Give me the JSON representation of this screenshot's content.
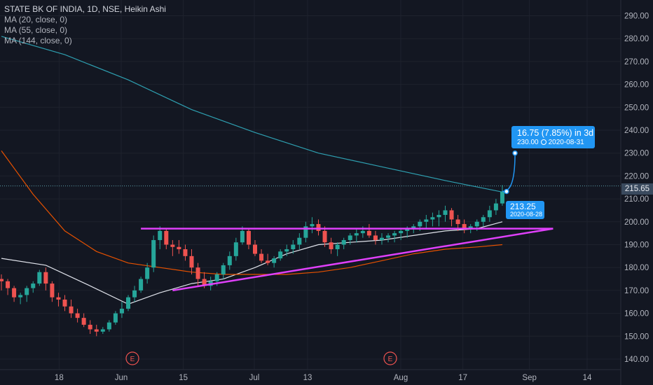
{
  "legend": {
    "title": "STATE BK OF INDIA, 1D, NSE, Heikin Ashi",
    "ma20": "MA (20, close, 0)",
    "ma55": "MA (55, close, 0)",
    "ma144": "MA (144, close, 0)"
  },
  "last_price": "215.65",
  "prediction": {
    "change": "16.75 (7.85%) in 3d",
    "target_price": "230.00",
    "target_date": "2020-08-31",
    "start_price": "213.25",
    "start_date": "2020-08-28"
  },
  "event_markers": [
    "E",
    "E"
  ],
  "colors": {
    "background": "#131722",
    "up": "#26a69a",
    "down": "#ef5350",
    "ma20": "#e0e3eb",
    "ma55": "#e65100",
    "ma144": "#2e9fb0",
    "trendlines": "#e040fb",
    "callout": "#2196f3"
  },
  "chart_data": {
    "type": "candlestick",
    "title": "STATE BK OF INDIA, 1D, NSE, Heikin Ashi",
    "ylim": [
      136,
      297
    ],
    "y_ticks": [
      "140.00",
      "150.00",
      "160.00",
      "170.00",
      "180.00",
      "190.00",
      "200.00",
      "210.00",
      "220.00",
      "230.00",
      "240.00",
      "250.00",
      "260.00",
      "270.00",
      "280.00",
      "290.00"
    ],
    "x_ticks": [
      {
        "label": "18",
        "date": "2020-05-18"
      },
      {
        "label": "Jun",
        "date": "2020-06-01"
      },
      {
        "label": "15",
        "date": "2020-06-15"
      },
      {
        "label": "Jul",
        "date": "2020-07-01"
      },
      {
        "label": "13",
        "date": "2020-07-13"
      },
      {
        "label": "Aug",
        "date": "2020-08-03"
      },
      {
        "label": "17",
        "date": "2020-08-17"
      },
      {
        "label": "Sep",
        "date": "2020-09-01"
      },
      {
        "label": "14",
        "date": "2020-09-14"
      }
    ],
    "x_range": [
      "2020-05-05",
      "2020-09-24"
    ],
    "candles": [
      [
        175,
        177,
        170,
        174
      ],
      [
        174,
        175,
        168,
        171
      ],
      [
        171,
        172,
        165,
        167
      ],
      [
        167,
        169,
        164,
        168
      ],
      [
        168,
        172,
        165,
        171
      ],
      [
        171,
        174,
        169,
        173
      ],
      [
        173,
        179,
        172,
        178
      ],
      [
        178,
        180,
        170,
        173
      ],
      [
        173,
        174,
        165,
        167
      ],
      [
        167,
        169,
        163,
        166
      ],
      [
        166,
        168,
        161,
        163
      ],
      [
        163,
        166,
        158,
        160
      ],
      [
        160,
        162,
        156,
        158
      ],
      [
        158,
        160,
        154,
        155
      ],
      [
        155,
        157,
        151,
        153
      ],
      [
        153,
        155,
        150,
        152
      ],
      [
        152,
        154,
        151,
        153
      ],
      [
        153,
        157,
        152,
        156
      ],
      [
        156,
        161,
        155,
        160
      ],
      [
        160,
        165,
        158,
        162
      ],
      [
        162,
        168,
        161,
        167
      ],
      [
        167,
        172,
        165,
        170
      ],
      [
        170,
        176,
        169,
        175
      ],
      [
        175,
        182,
        173,
        180
      ],
      [
        180,
        194,
        178,
        192
      ],
      [
        192,
        198,
        188,
        196
      ],
      [
        196,
        197,
        188,
        190
      ],
      [
        190,
        192,
        185,
        189
      ],
      [
        189,
        192,
        186,
        188
      ],
      [
        188,
        190,
        183,
        185
      ],
      [
        185,
        188,
        177,
        180
      ],
      [
        180,
        182,
        172,
        175
      ],
      [
        175,
        178,
        171,
        172
      ],
      [
        172,
        176,
        170,
        174
      ],
      [
        174,
        178,
        172,
        177
      ],
      [
        177,
        182,
        175,
        181
      ],
      [
        181,
        187,
        179,
        185
      ],
      [
        185,
        193,
        183,
        191
      ],
      [
        191,
        198,
        190,
        196
      ],
      [
        196,
        197,
        188,
        190
      ],
      [
        190,
        192,
        185,
        186
      ],
      [
        186,
        188,
        182,
        183
      ],
      [
        183,
        186,
        181,
        182
      ],
      [
        182,
        185,
        180,
        184
      ],
      [
        184,
        188,
        183,
        187
      ],
      [
        187,
        190,
        185,
        188
      ],
      [
        188,
        192,
        186,
        190
      ],
      [
        190,
        195,
        188,
        193
      ],
      [
        193,
        200,
        191,
        198
      ],
      [
        198,
        202,
        195,
        199
      ],
      [
        199,
        201,
        194,
        196
      ],
      [
        196,
        198,
        189,
        191
      ],
      [
        191,
        193,
        186,
        188
      ],
      [
        188,
        191,
        185,
        190
      ],
      [
        190,
        193,
        188,
        192
      ],
      [
        192,
        195,
        190,
        194
      ],
      [
        194,
        197,
        191,
        195
      ],
      [
        195,
        198,
        193,
        196
      ],
      [
        196,
        199,
        193,
        194
      ],
      [
        194,
        196,
        190,
        192
      ],
      [
        192,
        195,
        190,
        193
      ],
      [
        193,
        195,
        191,
        194
      ],
      [
        194,
        196,
        191,
        195
      ],
      [
        195,
        197,
        192,
        196
      ],
      [
        196,
        198,
        193,
        197
      ],
      [
        197,
        199,
        195,
        198
      ],
      [
        198,
        201,
        196,
        200
      ],
      [
        200,
        203,
        197,
        201
      ],
      [
        201,
        204,
        198,
        202
      ],
      [
        202,
        205,
        198,
        203
      ],
      [
        203,
        207,
        200,
        205
      ],
      [
        205,
        206,
        198,
        201
      ],
      [
        201,
        203,
        196,
        199
      ],
      [
        199,
        201,
        195,
        197
      ],
      [
        197,
        199,
        195,
        198
      ],
      [
        198,
        201,
        196,
        200
      ],
      [
        200,
        203,
        198,
        202
      ],
      [
        202,
        207,
        200,
        205
      ],
      [
        205,
        210,
        203,
        208
      ],
      [
        208,
        216,
        207,
        213.25
      ]
    ],
    "series": [
      {
        "name": "MA (20, close, 0)",
        "points": [
          [
            0,
            184
          ],
          [
            7,
            181
          ],
          [
            14,
            172
          ],
          [
            20,
            164
          ],
          [
            25,
            169
          ],
          [
            30,
            173
          ],
          [
            35,
            175
          ],
          [
            40,
            180
          ],
          [
            45,
            186
          ],
          [
            50,
            190
          ],
          [
            55,
            191
          ],
          [
            60,
            192
          ],
          [
            65,
            194
          ],
          [
            70,
            196
          ],
          [
            75,
            197
          ],
          [
            79,
            200
          ]
        ]
      },
      {
        "name": "MA (55, close, 0)",
        "points": [
          [
            0,
            231
          ],
          [
            5,
            212
          ],
          [
            10,
            196
          ],
          [
            15,
            187
          ],
          [
            20,
            182
          ],
          [
            25,
            180
          ],
          [
            30,
            178
          ],
          [
            35,
            177
          ],
          [
            40,
            177
          ],
          [
            45,
            177
          ],
          [
            50,
            178
          ],
          [
            55,
            180
          ],
          [
            60,
            183
          ],
          [
            65,
            186
          ],
          [
            70,
            188
          ],
          [
            75,
            189
          ],
          [
            79,
            190
          ]
        ]
      },
      {
        "name": "MA (144, close, 0)",
        "points": [
          [
            0,
            281
          ],
          [
            10,
            273
          ],
          [
            20,
            262
          ],
          [
            30,
            249
          ],
          [
            40,
            239
          ],
          [
            50,
            230
          ],
          [
            60,
            224
          ],
          [
            70,
            218
          ],
          [
            79,
            213
          ]
        ]
      }
    ],
    "trendlines": [
      {
        "points": [
          [
            22,
            197
          ],
          [
            87,
            197
          ]
        ]
      },
      {
        "points": [
          [
            27,
            170
          ],
          [
            87,
            197
          ]
        ]
      }
    ],
    "prediction_line": {
      "from": [
        79,
        213.25
      ],
      "to": [
        81,
        230
      ]
    },
    "price_line": 215.65
  }
}
